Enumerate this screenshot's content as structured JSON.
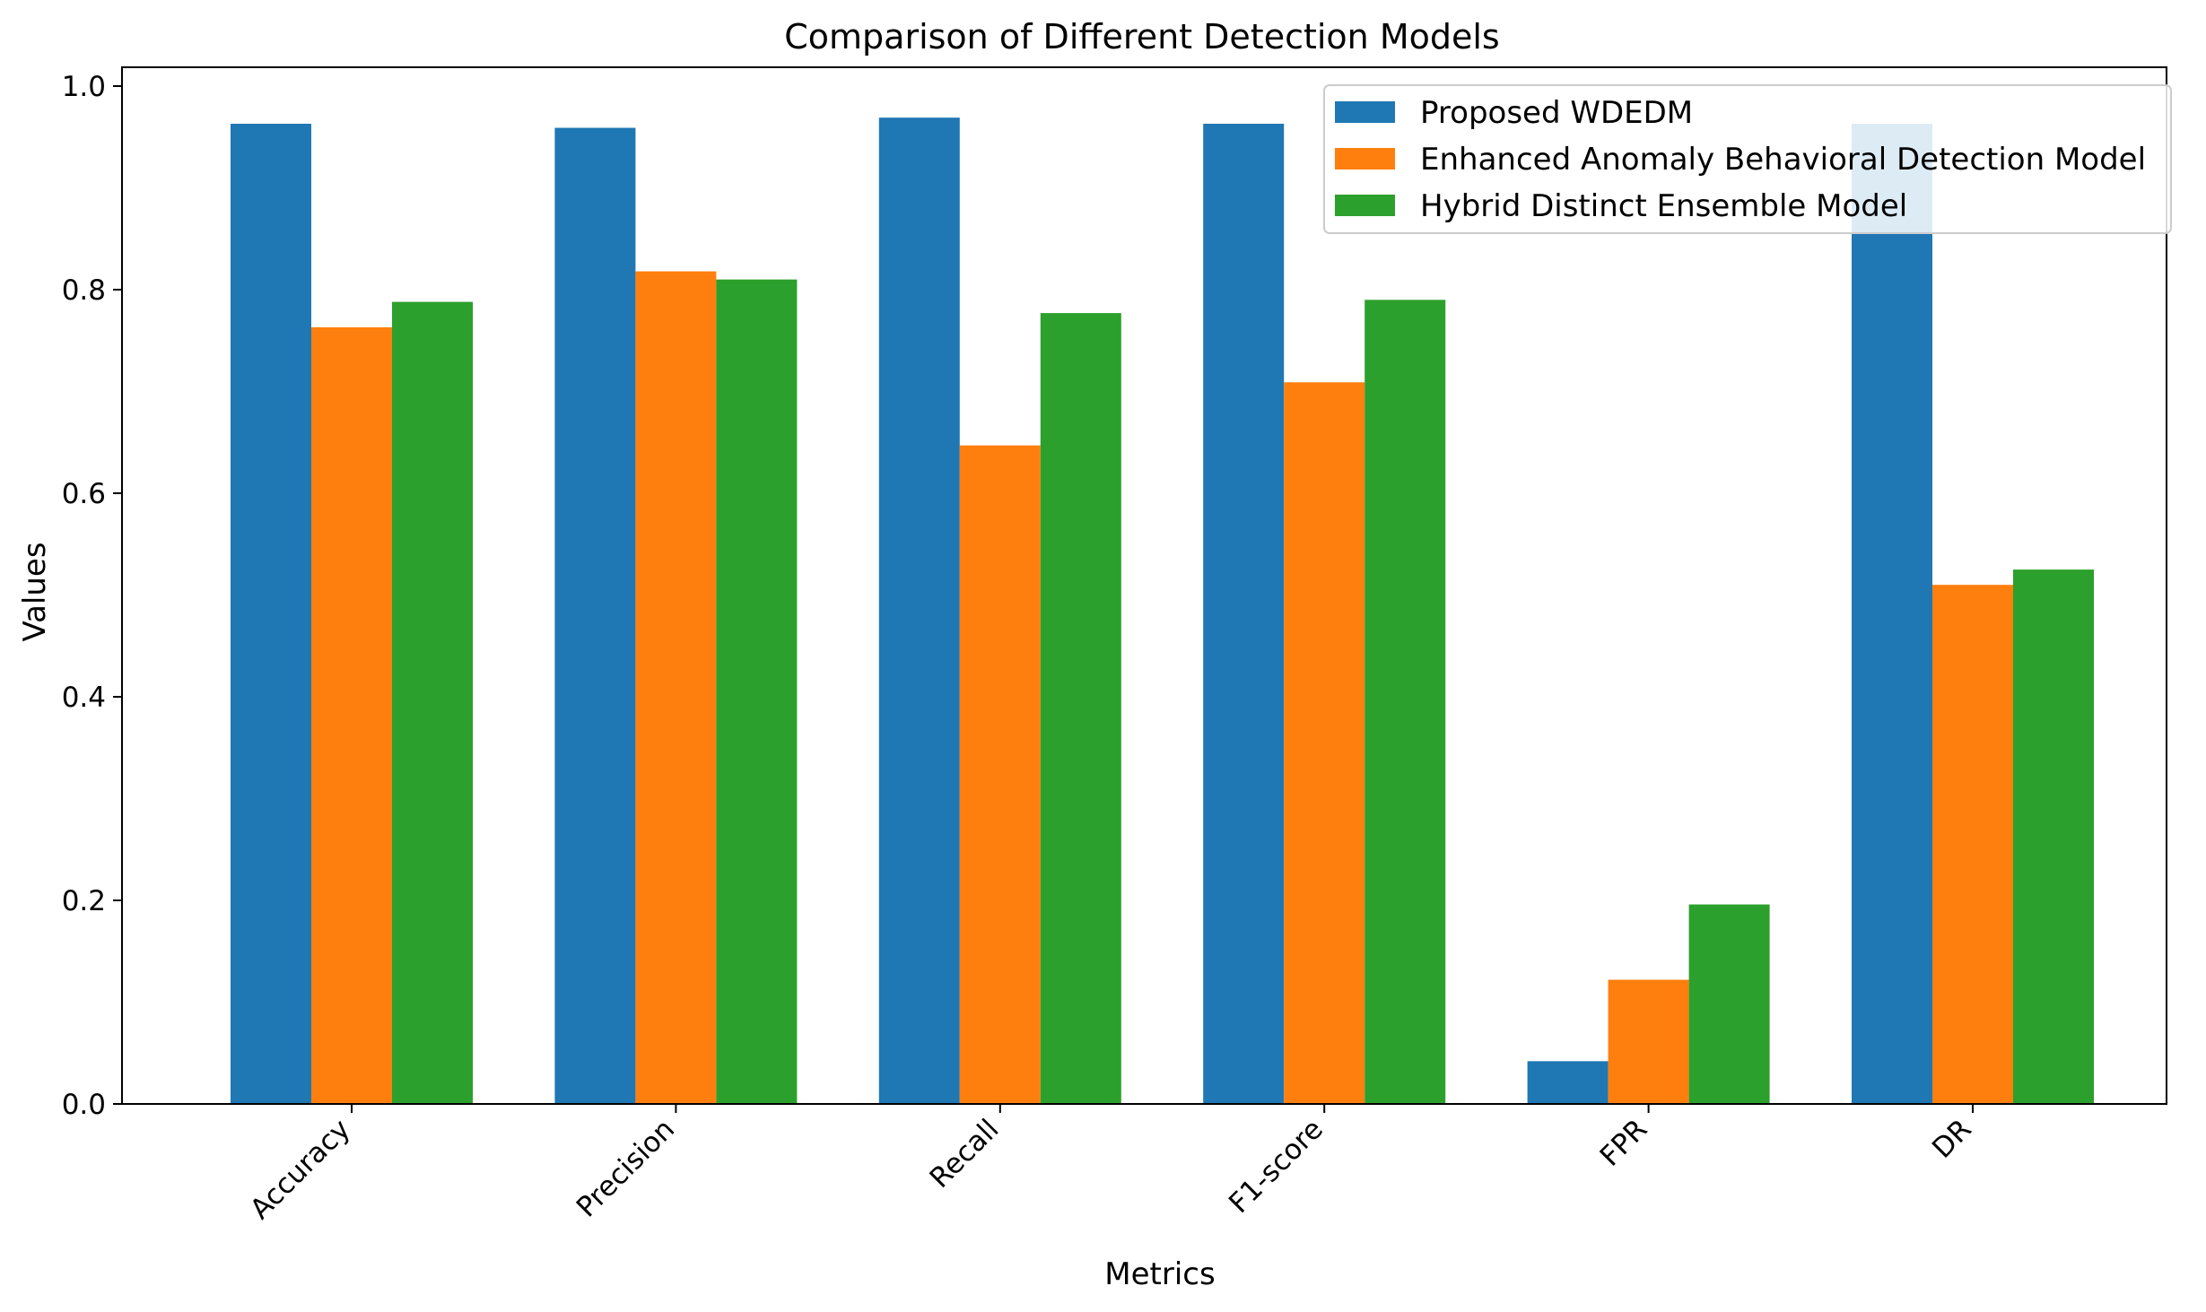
{
  "chart_data": {
    "type": "bar",
    "title": "Comparison of Different Detection Models",
    "xlabel": "Metrics",
    "ylabel": "Values",
    "ylim": [
      0,
      1.0
    ],
    "yticks": [
      "0.0",
      "0.2",
      "0.4",
      "0.6",
      "0.8",
      "1.0"
    ],
    "categories": [
      "Accuracy",
      "Precision",
      "Recall",
      "F1-score",
      "FPR",
      "DR"
    ],
    "series": [
      {
        "name": "Proposed WDEDM",
        "color": "#1f77b4",
        "values": [
          0.963,
          0.959,
          0.969,
          0.963,
          0.042,
          0.963
        ]
      },
      {
        "name": "Enhanced Anomaly Behavioral Detection Model",
        "color": "#ff7f0e",
        "values": [
          0.763,
          0.818,
          0.647,
          0.709,
          0.122,
          0.51
        ]
      },
      {
        "name": "Hybrid Distinct Ensemble Model",
        "color": "#2ca02c",
        "values": [
          0.788,
          0.81,
          0.777,
          0.79,
          0.196,
          0.525
        ]
      }
    ],
    "legend_position": "top-right",
    "grid": false
  }
}
